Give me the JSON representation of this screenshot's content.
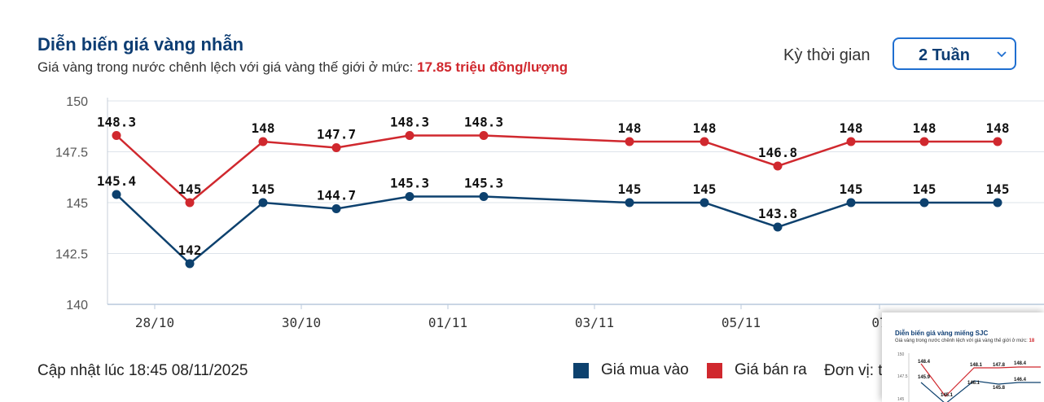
{
  "header": {
    "title": "Diễn biến giá vàng nhẫn",
    "subtitle_prefix": "Giá vàng trong nước chênh lệch với giá vàng thế giới ở mức: ",
    "subtitle_highlight": "17.85 triệu đồng/lượng"
  },
  "period": {
    "label": "Kỳ thời gian",
    "value": "2 Tuần"
  },
  "chart_data": {
    "type": "line",
    "title": "",
    "xlabel": "",
    "ylabel": "",
    "ylim": [
      140,
      150
    ],
    "y_ticks": [
      "150",
      "147.5",
      "145",
      "142.5",
      "140"
    ],
    "x_tick_labels": [
      "28/10",
      "30/10",
      "01/11",
      "03/11",
      "05/11",
      "07"
    ],
    "grid": true,
    "series": [
      {
        "name": "Giá mua vào",
        "color": "#0d416e",
        "values": [
          145.4,
          142,
          145,
          144.7,
          145.3,
          145.3,
          145,
          145,
          143.8,
          145,
          145,
          145
        ],
        "labels": [
          "145.4",
          "142",
          "145",
          "144.7",
          "145.3",
          "145.3",
          "145",
          "145",
          "143.8",
          "145",
          "145",
          "145"
        ]
      },
      {
        "name": "Giá bán ra",
        "color": "#d0282e",
        "values": [
          148.3,
          145,
          148,
          147.7,
          148.3,
          148.3,
          148,
          148,
          146.8,
          148,
          148,
          148
        ],
        "labels": [
          "148.3",
          "145",
          "148",
          "147.7",
          "148.3",
          "148.3",
          "148",
          "148",
          "146.8",
          "148",
          "148",
          "148"
        ]
      }
    ]
  },
  "footer": {
    "updated": "Cập nhật lúc 18:45 08/11/2025",
    "legend_buy": "Giá mua vào",
    "legend_sell": "Giá bán ra",
    "unit": "Đơn vị: t"
  },
  "thumbnail": {
    "title": "Diễn biến giá vàng miếng SJC",
    "subtitle_prefix": "Giá vàng trong nước chênh lệch với giá vàng thế giới ở mức: ",
    "subtitle_highlight": "18",
    "labels": [
      "148.4",
      "145.9",
      "145.1",
      "148.1",
      "146.1",
      "147.8",
      "145.8",
      "148.4",
      "146.4",
      "150",
      "147.5",
      "145"
    ]
  }
}
